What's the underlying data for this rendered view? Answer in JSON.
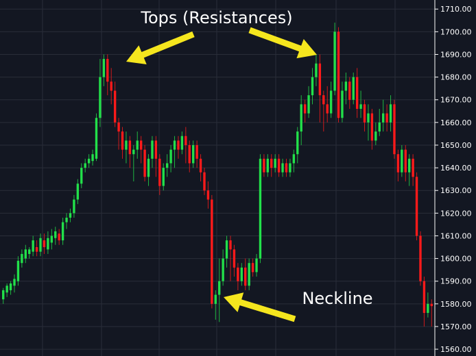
{
  "chart_data": {
    "type": "candlestick",
    "ylim": [
      1557,
      1714
    ],
    "y_ticks": [
      "1710.00",
      "1700.00",
      "1690.00",
      "1680.00",
      "1670.00",
      "1660.00",
      "1650.00",
      "1640.00",
      "1630.00",
      "1620.00",
      "1610.00",
      "1600.00",
      "1590.00",
      "1580.00",
      "1570.00",
      "1560.00"
    ],
    "colors": {
      "up": "#22e04a",
      "down": "#ff1a1a",
      "arrow": "#f5e61e",
      "background": "#131722",
      "grid": "#2a2e39"
    },
    "annotations": [
      {
        "id": "tops",
        "text": "Tops (Resistances)"
      },
      {
        "id": "neckline",
        "text": "Neckline"
      }
    ],
    "candles": [
      [
        1582,
        1586,
        1580,
        1587
      ],
      [
        1585,
        1588,
        1583,
        1589
      ],
      [
        1586,
        1589,
        1584,
        1590
      ],
      [
        1588,
        1591,
        1585,
        1593
      ],
      [
        1590,
        1599,
        1588,
        1601
      ],
      [
        1598,
        1602,
        1596,
        1604
      ],
      [
        1600,
        1604,
        1598,
        1606
      ],
      [
        1602,
        1604,
        1600,
        1605
      ],
      [
        1603,
        1608,
        1601,
        1610
      ],
      [
        1605,
        1603,
        1601,
        1608
      ],
      [
        1603,
        1609,
        1601,
        1611
      ],
      [
        1608,
        1605,
        1602,
        1611
      ],
      [
        1604,
        1609,
        1602,
        1612
      ],
      [
        1607,
        1610,
        1604,
        1613
      ],
      [
        1609,
        1612,
        1606,
        1614
      ],
      [
        1611,
        1608,
        1606,
        1613
      ],
      [
        1608,
        1616,
        1606,
        1618
      ],
      [
        1616,
        1618,
        1613,
        1620
      ],
      [
        1618,
        1620,
        1616,
        1622
      ],
      [
        1620,
        1626,
        1618,
        1628
      ],
      [
        1626,
        1633,
        1624,
        1635
      ],
      [
        1633,
        1640,
        1631,
        1642
      ],
      [
        1640,
        1642,
        1638,
        1644
      ],
      [
        1642,
        1644,
        1640,
        1646
      ],
      [
        1643,
        1646,
        1641,
        1648
      ],
      [
        1644,
        1662,
        1643,
        1664
      ],
      [
        1662,
        1680,
        1658,
        1688
      ],
      [
        1680,
        1688,
        1676,
        1690
      ],
      [
        1688,
        1678,
        1672,
        1690
      ],
      [
        1678,
        1674,
        1668,
        1684
      ],
      [
        1674,
        1660,
        1658,
        1678
      ],
      [
        1660,
        1656,
        1648,
        1662
      ],
      [
        1656,
        1648,
        1644,
        1658
      ],
      [
        1648,
        1652,
        1642,
        1656
      ],
      [
        1652,
        1646,
        1640,
        1654
      ],
      [
        1646,
        1648,
        1634,
        1650
      ],
      [
        1648,
        1652,
        1644,
        1656
      ],
      [
        1652,
        1648,
        1642,
        1654
      ],
      [
        1648,
        1636,
        1634,
        1650
      ],
      [
        1636,
        1644,
        1632,
        1646
      ],
      [
        1644,
        1652,
        1640,
        1654
      ],
      [
        1652,
        1644,
        1636,
        1654
      ],
      [
        1644,
        1632,
        1628,
        1646
      ],
      [
        1632,
        1640,
        1630,
        1642
      ],
      [
        1640,
        1642,
        1636,
        1646
      ],
      [
        1642,
        1648,
        1638,
        1650
      ],
      [
        1648,
        1652,
        1640,
        1654
      ],
      [
        1652,
        1648,
        1644,
        1654
      ],
      [
        1648,
        1654,
        1646,
        1656
      ],
      [
        1654,
        1650,
        1642,
        1658
      ],
      [
        1650,
        1642,
        1638,
        1652
      ],
      [
        1642,
        1650,
        1640,
        1652
      ],
      [
        1650,
        1644,
        1640,
        1652
      ],
      [
        1644,
        1638,
        1634,
        1646
      ],
      [
        1638,
        1630,
        1628,
        1640
      ],
      [
        1630,
        1626,
        1622,
        1634
      ],
      [
        1626,
        1580,
        1578,
        1628
      ],
      [
        1580,
        1584,
        1573,
        1586
      ],
      [
        1584,
        1590,
        1572,
        1600
      ],
      [
        1590,
        1600,
        1588,
        1604
      ],
      [
        1600,
        1608,
        1596,
        1610
      ],
      [
        1608,
        1604,
        1590,
        1610
      ],
      [
        1604,
        1596,
        1592,
        1606
      ],
      [
        1596,
        1590,
        1586,
        1598
      ],
      [
        1590,
        1596,
        1588,
        1598
      ],
      [
        1596,
        1588,
        1586,
        1600
      ],
      [
        1588,
        1598,
        1586,
        1600
      ],
      [
        1598,
        1594,
        1592,
        1600
      ],
      [
        1594,
        1600,
        1592,
        1602
      ],
      [
        1600,
        1644,
        1598,
        1646
      ],
      [
        1644,
        1638,
        1636,
        1646
      ],
      [
        1638,
        1644,
        1636,
        1646
      ],
      [
        1644,
        1640,
        1636,
        1646
      ],
      [
        1640,
        1644,
        1638,
        1646
      ],
      [
        1644,
        1638,
        1636,
        1646
      ],
      [
        1638,
        1642,
        1636,
        1644
      ],
      [
        1642,
        1638,
        1636,
        1644
      ],
      [
        1638,
        1642,
        1636,
        1644
      ],
      [
        1642,
        1646,
        1638,
        1648
      ],
      [
        1646,
        1656,
        1642,
        1658
      ],
      [
        1656,
        1668,
        1650,
        1672
      ],
      [
        1668,
        1664,
        1660,
        1670
      ],
      [
        1664,
        1672,
        1662,
        1676
      ],
      [
        1672,
        1680,
        1668,
        1684
      ],
      [
        1680,
        1686,
        1676,
        1690
      ],
      [
        1686,
        1672,
        1660,
        1690
      ],
      [
        1672,
        1668,
        1656,
        1674
      ],
      [
        1668,
        1664,
        1660,
        1676
      ],
      [
        1664,
        1674,
        1662,
        1678
      ],
      [
        1674,
        1700,
        1672,
        1704
      ],
      [
        1700,
        1662,
        1660,
        1702
      ],
      [
        1662,
        1674,
        1660,
        1678
      ],
      [
        1674,
        1678,
        1668,
        1682
      ],
      [
        1678,
        1670,
        1666,
        1680
      ],
      [
        1670,
        1680,
        1668,
        1682
      ],
      [
        1680,
        1666,
        1662,
        1684
      ],
      [
        1666,
        1668,
        1662,
        1674
      ],
      [
        1668,
        1660,
        1656,
        1670
      ],
      [
        1660,
        1664,
        1652,
        1668
      ],
      [
        1664,
        1652,
        1648,
        1666
      ],
      [
        1652,
        1656,
        1650,
        1660
      ],
      [
        1656,
        1660,
        1654,
        1666
      ],
      [
        1660,
        1664,
        1656,
        1670
      ],
      [
        1664,
        1660,
        1656,
        1668
      ],
      [
        1660,
        1668,
        1656,
        1672
      ],
      [
        1668,
        1646,
        1644,
        1670
      ],
      [
        1646,
        1638,
        1634,
        1648
      ],
      [
        1638,
        1648,
        1636,
        1650
      ],
      [
        1648,
        1638,
        1634,
        1650
      ],
      [
        1638,
        1644,
        1632,
        1646
      ],
      [
        1644,
        1636,
        1632,
        1646
      ],
      [
        1636,
        1610,
        1608,
        1638
      ],
      [
        1610,
        1590,
        1588,
        1612
      ],
      [
        1590,
        1576,
        1570,
        1592
      ],
      [
        1576,
        1580,
        1574,
        1585
      ],
      [
        1580,
        1579,
        1570,
        1582
      ]
    ]
  }
}
